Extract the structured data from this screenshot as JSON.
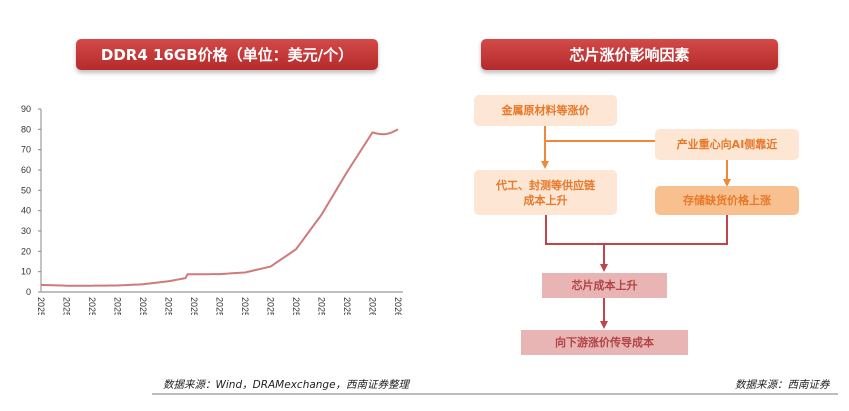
{
  "left_panel": {
    "title": "DDR4 16GB价格（单位：美元/个）",
    "source": "数据来源：Wind，DRAMexchange，西南证券整理"
  },
  "right_panel": {
    "title": "芯片涨价影响因素",
    "source": "数据来源：西南证券",
    "boxes": {
      "metal": "金属原材料等涨价",
      "ai": "产业重心向AI侧靠近",
      "foundry": "代工、封测等供应链成本上升",
      "foundry_line1": "代工、封测等供应链",
      "foundry_line2": "成本上升",
      "storage": "存储缺货价格上涨",
      "chip_cost": "芯片成本上升",
      "downstream": "向下游涨价传导成本"
    },
    "colors": {
      "orange_arrow": "#f0883a",
      "red_arrow": "#c0454a",
      "box_light": "#fde6d4",
      "box_mid": "#f8c08f",
      "box_pink": "#e8b4b4"
    }
  },
  "chart_data": {
    "type": "line",
    "title": "DDR4 16GB价格（单位：美元/个）",
    "xlabel": "",
    "ylabel": "美元/个",
    "ylim": [
      0,
      90
    ],
    "yticks": [
      0,
      10,
      20,
      30,
      40,
      50,
      60,
      70,
      80,
      90
    ],
    "grid": false,
    "legend": "none",
    "line_color": "#d07a7a",
    "categories": [
      "2025/1/2",
      "2025/2/1",
      "2025/3/3",
      "2025/4/2",
      "2025/5/2",
      "2025/6/1",
      "2025/7/1",
      "2025/7/31",
      "2025/8/30",
      "2025/9/29",
      "2025/10/29",
      "2025/11/28",
      "2025/12/28",
      "2026/1/27",
      "2026/2/26"
    ],
    "series": [
      {
        "name": "DDR4 16GB",
        "values": [
          3.5,
          3.1,
          3.1,
          3.2,
          3.8,
          5.3,
          8.7,
          8.8,
          9.6,
          12.5,
          21,
          38,
          59,
          78.5,
          80
        ]
      }
    ]
  }
}
